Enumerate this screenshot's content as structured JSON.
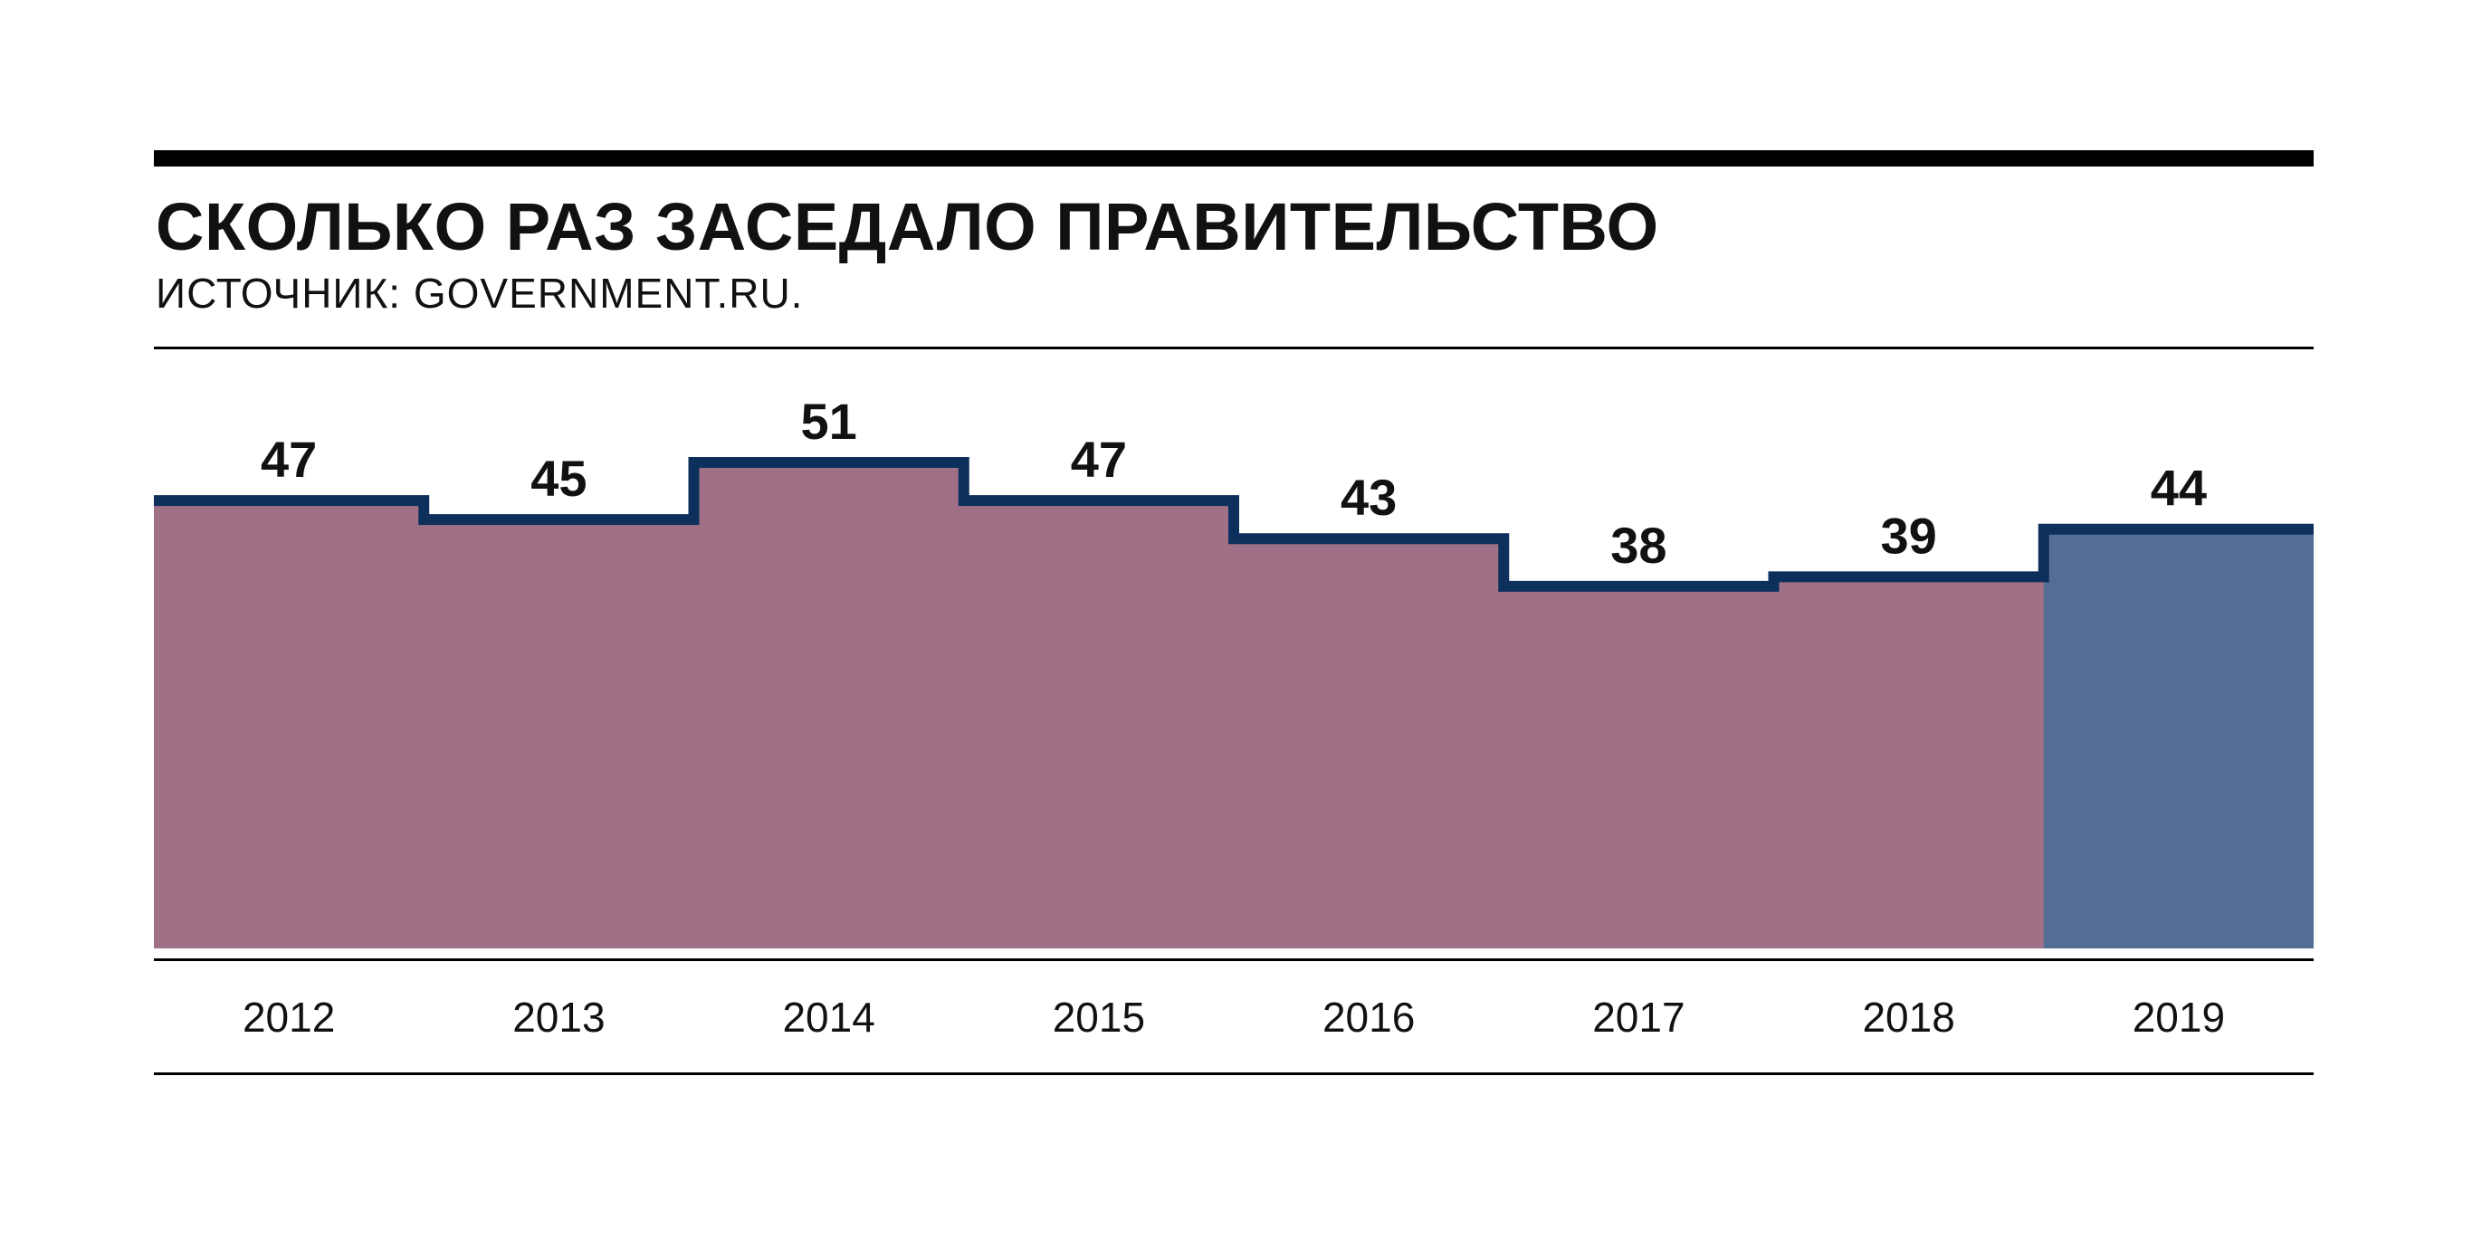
{
  "chart_data": {
    "type": "bar",
    "title": "СКОЛЬКО РАЗ ЗАСЕДАЛО ПРАВИТЕЛЬСТВО",
    "subtitle": "ИСТОЧНИК: GOVERNMENT.RU.",
    "categories": [
      "2012",
      "2013",
      "2014",
      "2015",
      "2016",
      "2017",
      "2018",
      "2019"
    ],
    "values": [
      47,
      45,
      51,
      47,
      43,
      38,
      39,
      44
    ],
    "ylim": [
      0,
      51
    ],
    "grid": false,
    "colors": {
      "bar_fill": "#a07086",
      "highlight_fill": "#536d94",
      "step_outline": "#0d2f5c",
      "rule": "#000000"
    },
    "highlight_category": "2019"
  }
}
